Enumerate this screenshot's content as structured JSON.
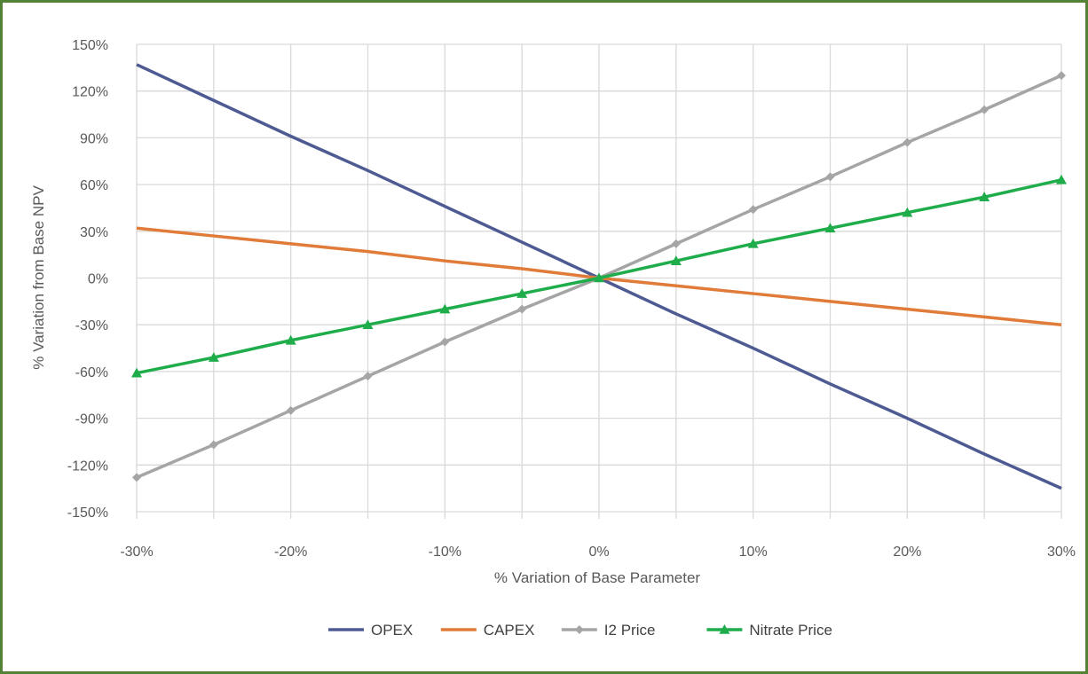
{
  "chart_data": {
    "type": "line",
    "title": "",
    "xlabel": "% Variation of Base Parameter",
    "ylabel": "% Variation from Base NPV",
    "x": [
      -30,
      -25,
      -20,
      -15,
      -10,
      -5,
      0,
      5,
      10,
      15,
      20,
      25,
      30
    ],
    "x_tick_values": [
      -30,
      -20,
      -10,
      0,
      10,
      20,
      30
    ],
    "x_tick_labels": [
      "-30%",
      "-20%",
      "-10%",
      "0%",
      "10%",
      "20%",
      "30%"
    ],
    "y_tick_values": [
      150,
      120,
      90,
      60,
      30,
      0,
      -30,
      -60,
      -90,
      -120,
      -150
    ],
    "y_tick_labels": [
      "150%",
      "120%",
      "90%",
      "60%",
      "30%",
      "0%",
      "-30%",
      "-60%",
      "-90%",
      "-120%",
      "-150%"
    ],
    "xlim": [
      -30,
      30
    ],
    "ylim": [
      -150,
      150
    ],
    "grid": true,
    "legend_position": "bottom",
    "series": [
      {
        "name": "OPEX",
        "color": "#4E5B93",
        "marker": "none",
        "values": [
          137,
          114,
          91,
          69,
          46,
          23,
          0,
          -23,
          -45,
          -68,
          -90,
          -113,
          -135
        ]
      },
      {
        "name": "CAPEX",
        "color": "#E07B39",
        "marker": "none",
        "values": [
          32,
          27,
          22,
          17,
          11,
          6,
          0,
          -5,
          -10,
          -15,
          -20,
          -25,
          -30
        ]
      },
      {
        "name": "I2 Price",
        "color": "#A5A5A5",
        "marker": "diamond",
        "values": [
          -128,
          -107,
          -85,
          -63,
          -41,
          -20,
          0,
          22,
          44,
          65,
          87,
          108,
          130
        ]
      },
      {
        "name": "Nitrate Price",
        "color": "#1FAD4B",
        "marker": "triangle",
        "values": [
          -61,
          -51,
          -40,
          -30,
          -20,
          -10,
          0,
          11,
          22,
          32,
          42,
          52,
          63
        ]
      }
    ]
  }
}
